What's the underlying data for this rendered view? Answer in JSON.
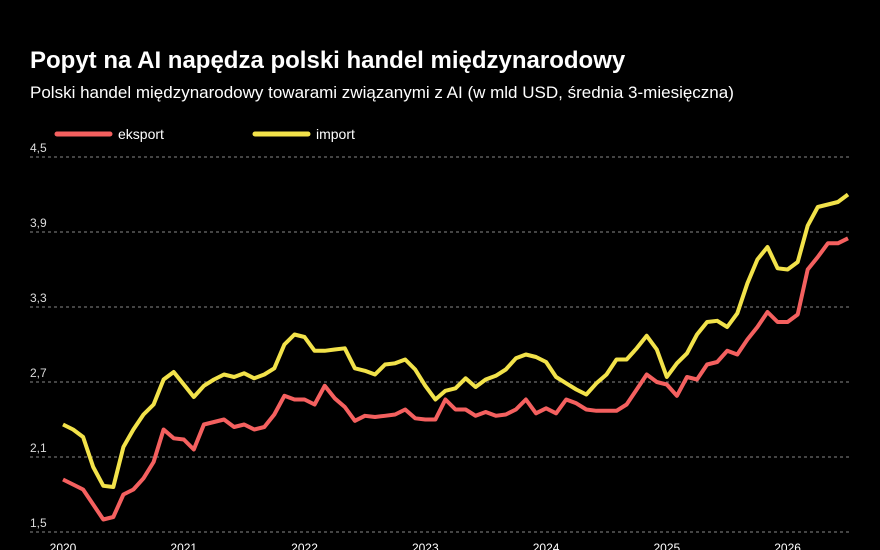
{
  "chart_data": {
    "type": "line",
    "title": "Popyt na AI napędza polski handel międzynarodowy",
    "subtitle": "Polski handel międzynarodowy towarami związanymi z AI (w mld USD, średnia 3-miesięczna)",
    "categories": [
      "2020",
      null,
      null,
      null,
      null,
      null,
      null,
      null,
      null,
      null,
      null,
      null,
      "2021",
      null,
      null,
      null,
      null,
      null,
      null,
      null,
      null,
      null,
      null,
      null,
      "2022",
      null,
      null,
      null,
      null,
      null,
      null,
      null,
      null,
      null,
      null,
      null,
      "2023",
      null,
      null,
      null,
      null,
      null,
      null,
      null,
      null,
      null,
      null,
      null,
      "2024",
      null,
      null,
      null,
      null,
      null,
      null,
      null,
      null,
      null,
      null,
      null,
      "2025",
      null,
      null,
      null,
      null,
      null,
      null,
      null,
      null,
      null,
      null,
      null,
      "2026",
      null,
      null,
      null,
      null,
      null,
      null
    ],
    "series": [
      {
        "name": "eksport",
        "color": "#f4605f",
        "values": [
          1.92,
          1.88,
          1.84,
          1.72,
          1.6,
          1.62,
          1.8,
          1.84,
          1.93,
          2.06,
          2.32,
          2.25,
          2.24,
          2.16,
          2.36,
          2.38,
          2.4,
          2.34,
          2.36,
          2.32,
          2.34,
          2.44,
          2.59,
          2.56,
          2.56,
          2.52,
          2.67,
          2.57,
          2.5,
          2.39,
          2.43,
          2.42,
          2.43,
          2.44,
          2.48,
          2.41,
          2.4,
          2.4,
          2.56,
          2.48,
          2.48,
          2.43,
          2.46,
          2.43,
          2.44,
          2.48,
          2.56,
          2.45,
          2.49,
          2.45,
          2.56,
          2.53,
          2.48,
          2.47,
          2.47,
          2.47,
          2.52,
          2.64,
          2.76,
          2.7,
          2.68,
          2.59,
          2.74,
          2.72,
          2.84,
          2.86,
          2.95,
          2.92,
          3.04,
          3.14,
          3.26,
          3.18,
          3.18,
          3.24,
          3.6,
          3.7,
          3.81,
          3.81,
          3.85
        ]
      },
      {
        "name": "import",
        "color": "#f2e24a",
        "values": [
          2.36,
          2.32,
          2.26,
          2.02,
          1.87,
          1.86,
          2.18,
          2.32,
          2.44,
          2.52,
          2.72,
          2.78,
          2.68,
          2.58,
          2.67,
          2.72,
          2.76,
          2.74,
          2.77,
          2.73,
          2.76,
          2.81,
          3.0,
          3.08,
          3.06,
          2.95,
          2.95,
          2.96,
          2.97,
          2.81,
          2.79,
          2.76,
          2.84,
          2.85,
          2.88,
          2.8,
          2.67,
          2.56,
          2.63,
          2.65,
          2.73,
          2.66,
          2.72,
          2.75,
          2.8,
          2.89,
          2.92,
          2.9,
          2.86,
          2.74,
          2.69,
          2.64,
          2.6,
          2.69,
          2.76,
          2.88,
          2.88,
          2.97,
          3.07,
          2.96,
          2.74,
          2.85,
          2.93,
          3.08,
          3.18,
          3.19,
          3.14,
          3.25,
          3.49,
          3.68,
          3.78,
          3.61,
          3.6,
          3.66,
          3.95,
          4.1,
          4.12,
          4.14,
          4.2
        ]
      }
    ],
    "ylim": [
      1.5,
      4.5
    ],
    "yticks": [
      {
        "value": 1.5,
        "label": "1,5"
      },
      {
        "value": 2.1,
        "label": "2,1"
      },
      {
        "value": 2.7,
        "label": "2,7"
      },
      {
        "value": 3.3,
        "label": "3,3"
      },
      {
        "value": 3.9,
        "label": "3,9"
      },
      {
        "value": 4.5,
        "label": "4,5"
      }
    ],
    "grid": true
  }
}
